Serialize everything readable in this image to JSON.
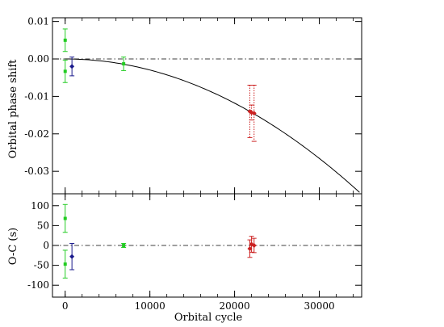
{
  "chart_data": [
    {
      "type": "scatter",
      "panel": "top",
      "ylabel": "Orbital phase shift",
      "xlim": [
        -1500,
        35000
      ],
      "ylim": [
        -0.036,
        0.011
      ],
      "yticks": [
        0.01,
        0.0,
        -0.01,
        -0.02,
        -0.03
      ],
      "ytick_labels": [
        "0.01",
        "0.00",
        "-0.01",
        "-0.02",
        "-0.03"
      ],
      "reference_line": {
        "y": 0.0,
        "style": "dash-dot"
      },
      "model_curve": {
        "type": "quadratic",
        "coefficient_per_cycle_squared": -2.95e-11,
        "x_range": [
          0,
          35000
        ]
      },
      "series": [
        {
          "color": "#22cc22",
          "marker": "square",
          "points": [
            {
              "x": 0,
              "y": 0.005,
              "err": 0.003
            },
            {
              "x": 0,
              "y": -0.0033,
              "err": 0.003
            },
            {
              "x": 6900,
              "y": -0.0013,
              "err": 0.0018
            }
          ]
        },
        {
          "color": "#1a1a8c",
          "marker": "diamond",
          "points": [
            {
              "x": 800,
              "y": -0.002,
              "err": 0.0025
            }
          ]
        },
        {
          "color": "#cc2222",
          "marker": "diamond",
          "dotted": true,
          "points": [
            {
              "x": 21800,
              "y": -0.014,
              "err": 0.007
            },
            {
              "x": 22000,
              "y": -0.0143,
              "err": 0.002
            },
            {
              "x": 22300,
              "y": -0.0145,
              "err": 0.0075
            }
          ]
        }
      ]
    },
    {
      "type": "scatter",
      "panel": "bottom",
      "xlabel": "Orbital cycle",
      "ylabel": "O-C (s)",
      "xlim": [
        -1500,
        35000
      ],
      "ylim": [
        -130,
        130
      ],
      "xticks": [
        0,
        10000,
        20000,
        30000
      ],
      "xtick_labels": [
        "0",
        "10000",
        "20000",
        "30000"
      ],
      "yticks": [
        100,
        50,
        0,
        -50,
        -100
      ],
      "ytick_labels": [
        "100",
        "50",
        "0",
        "-50",
        "-100"
      ],
      "reference_line": {
        "y": 0,
        "style": "dash-dot"
      },
      "series": [
        {
          "color": "#22cc22",
          "marker": "square",
          "points": [
            {
              "x": 0,
              "y": 68,
              "err": 35
            },
            {
              "x": 0,
              "y": -47,
              "err": 35
            },
            {
              "x": 6900,
              "y": 0,
              "err": 5
            }
          ]
        },
        {
          "color": "#1a1a8c",
          "marker": "diamond",
          "points": [
            {
              "x": 800,
              "y": -28,
              "err": 33
            }
          ]
        },
        {
          "color": "#cc2222",
          "marker": "diamond",
          "points": [
            {
              "x": 21800,
              "y": -8,
              "err": 22
            },
            {
              "x": 22000,
              "y": 3,
              "err": 20
            },
            {
              "x": 22300,
              "y": 0,
              "err": 18
            }
          ]
        }
      ]
    }
  ]
}
